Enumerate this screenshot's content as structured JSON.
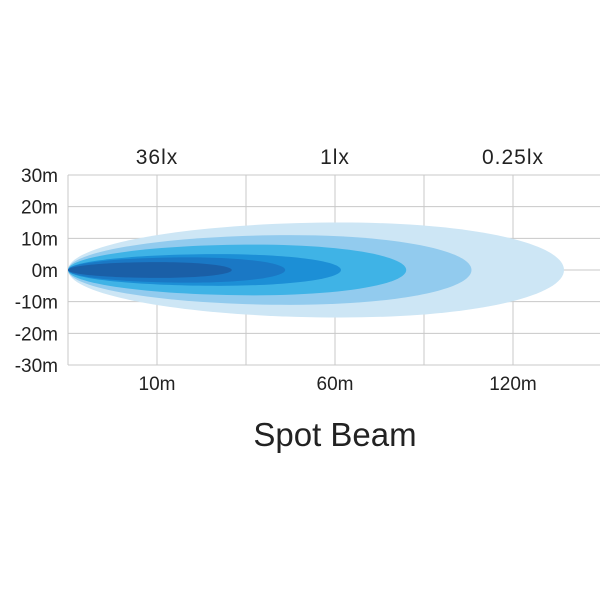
{
  "chart_data": {
    "type": "area",
    "title": "Spot Beam",
    "lux_labels": [
      {
        "text": "36lx",
        "x": 10
      },
      {
        "text": "1lx",
        "x": 60
      },
      {
        "text": "0.25lx",
        "x": 120
      }
    ],
    "x_ticks": [
      {
        "text": "10m",
        "x": 10
      },
      {
        "text": "60m",
        "x": 60
      },
      {
        "text": "120m",
        "x": 120
      }
    ],
    "y_ticks": [
      "30m",
      "20m",
      "10m",
      "0m",
      "-10m",
      "-20m",
      "-30m"
    ],
    "y_values": [
      30,
      20,
      10,
      0,
      -10,
      -20,
      -30
    ],
    "ylim": [
      -30,
      30
    ],
    "grid": true,
    "beams": [
      {
        "reach": 137,
        "half_width": 15,
        "color": "#cde6f5"
      },
      {
        "reach": 106,
        "half_width": 11,
        "color": "#92cbee"
      },
      {
        "reach": 84,
        "half_width": 8,
        "color": "#3fb3e6"
      },
      {
        "reach": 62,
        "half_width": 5,
        "color": "#1c8fd6"
      },
      {
        "reach": 46,
        "half_width": 4,
        "color": "#1a78c5"
      },
      {
        "reach": 31,
        "half_width": 2.5,
        "color": "#1a5fa7"
      }
    ],
    "grid_color": "#c8c8c8"
  }
}
